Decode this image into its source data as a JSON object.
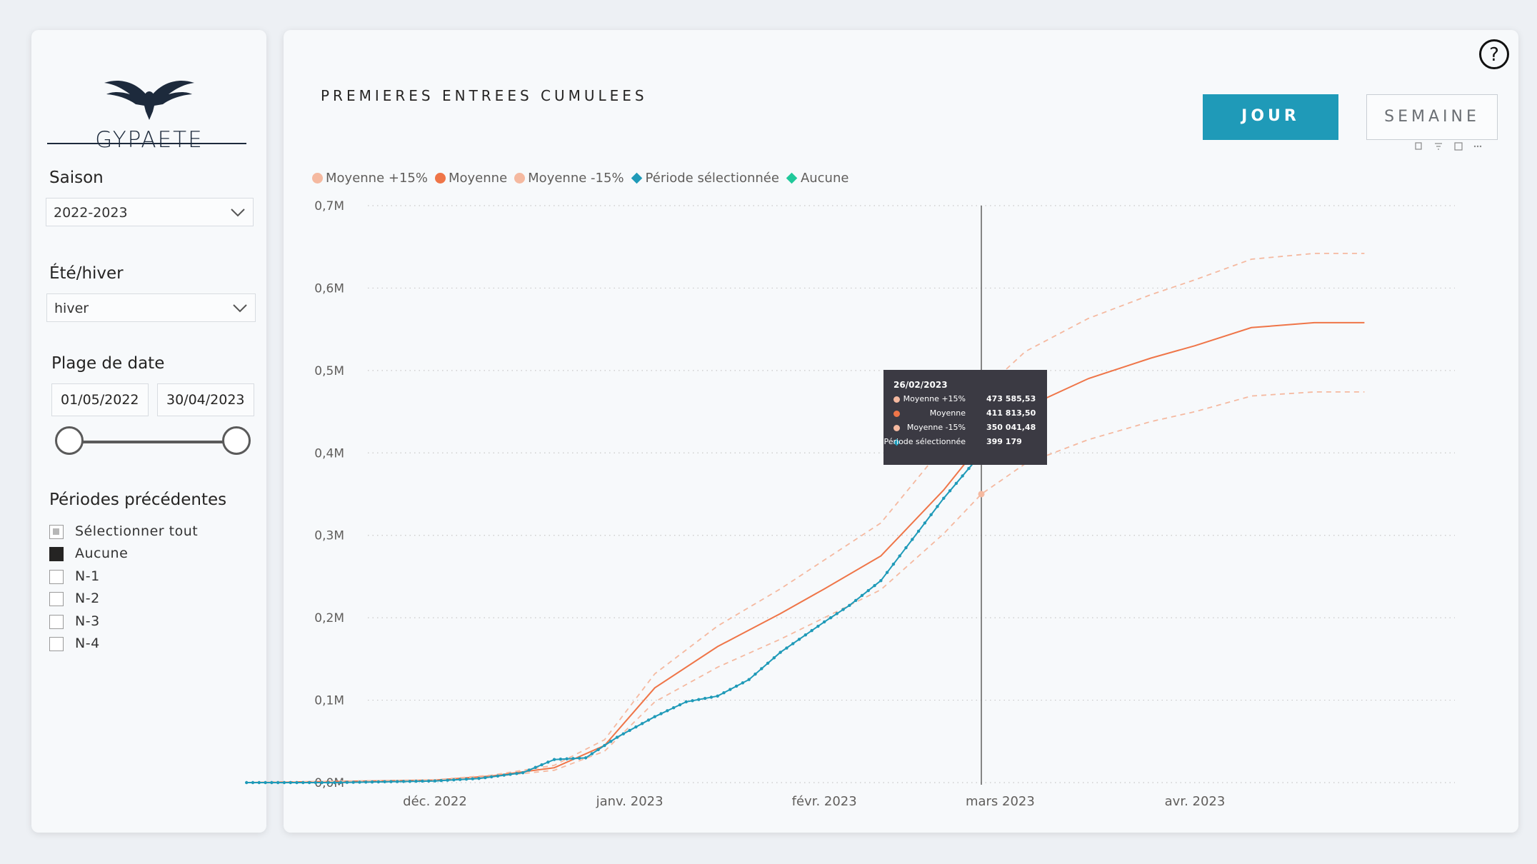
{
  "logo": {
    "text": "GYPAETE"
  },
  "slicers": {
    "saison": {
      "title": "Saison",
      "value": "2022-2023"
    },
    "ete_hiver": {
      "title": "Été/hiver",
      "value": "hiver"
    },
    "plage_date": {
      "title": "Plage de date",
      "start": "01/05/2022",
      "end": "30/04/2023"
    },
    "periodes": {
      "title": "Périodes précédentes",
      "items": [
        {
          "label": "Sélectionner tout",
          "state": "partial"
        },
        {
          "label": "Aucune",
          "state": "checked"
        },
        {
          "label": "N-1",
          "state": "unchecked"
        },
        {
          "label": "N-2",
          "state": "unchecked"
        },
        {
          "label": "N-3",
          "state": "unchecked"
        },
        {
          "label": "N-4",
          "state": "unchecked"
        }
      ]
    }
  },
  "main": {
    "title": "PREMIERES ENTREES CUMULEES",
    "buttons": {
      "jour": "JOUR",
      "semaine": "SEMAINE"
    },
    "help_icon": "question-circle-icon"
  },
  "colors": {
    "plus15": "#f5b9a0",
    "moyenne": "#ef7548",
    "minus15": "#f5b9a0",
    "periode": "#1f9ab8",
    "aucune": "#20c89a"
  },
  "chart_data": {
    "type": "line",
    "x_axis": {
      "ticks": [
        "déc. 2022",
        "janv. 2023",
        "févr. 2023",
        "mars 2023",
        "avr. 2023"
      ]
    },
    "y_axis": {
      "ticks": [
        "0,0M",
        "0,1M",
        "0,2M",
        "0,3M",
        "0,4M",
        "0,5M",
        "0,6M",
        "0,7M"
      ],
      "ylim": [
        0,
        700000
      ]
    },
    "grid": "horizontal-dotted",
    "legend_position": "top-left",
    "legend": [
      {
        "name": "Moyenne +15%",
        "marker": "circle",
        "color_key": "plus15"
      },
      {
        "name": "Moyenne",
        "marker": "circle",
        "color_key": "moyenne"
      },
      {
        "name": "Moyenne -15%",
        "marker": "circle",
        "color_key": "minus15"
      },
      {
        "name": "Période sélectionnée",
        "marker": "diamond",
        "color_key": "periode"
      },
      {
        "name": "Aucune",
        "marker": "diamond",
        "color_key": "aucune"
      }
    ],
    "series": [
      {
        "name": "Moyenne",
        "x": [
          "2022-11-01",
          "2022-12-01",
          "2022-12-10",
          "2022-12-20",
          "2022-12-28",
          "2023-01-05",
          "2023-01-15",
          "2023-01-25",
          "2023-02-01",
          "2023-02-10",
          "2023-02-20",
          "2023-02-26",
          "2023-03-05",
          "2023-03-15",
          "2023-03-25",
          "2023-04-01",
          "2023-04-10",
          "2023-04-20",
          "2023-04-28"
        ],
        "values": [
          0,
          3000,
          8000,
          18000,
          45000,
          115000,
          165000,
          205000,
          235000,
          275000,
          355000,
          411813.5,
          455000,
          490000,
          515000,
          530000,
          552000,
          558000,
          558000
        ]
      },
      {
        "name": "Moyenne +15%",
        "x": [
          "2022-11-01",
          "2022-12-01",
          "2022-12-10",
          "2022-12-20",
          "2022-12-28",
          "2023-01-05",
          "2023-01-15",
          "2023-01-25",
          "2023-02-01",
          "2023-02-10",
          "2023-02-20",
          "2023-02-26",
          "2023-03-05",
          "2023-03-15",
          "2023-03-25",
          "2023-04-01",
          "2023-04-10",
          "2023-04-20",
          "2023-04-28"
        ],
        "values": [
          0,
          3500,
          9000,
          21000,
          52000,
          132000,
          190000,
          235000,
          270000,
          315000,
          408000,
          473585.53,
          523000,
          563000,
          592000,
          610000,
          635000,
          642000,
          642000
        ]
      },
      {
        "name": "Moyenne -15%",
        "x": [
          "2022-11-01",
          "2022-12-01",
          "2022-12-10",
          "2022-12-20",
          "2022-12-28",
          "2023-01-05",
          "2023-01-15",
          "2023-01-25",
          "2023-02-01",
          "2023-02-10",
          "2023-02-20",
          "2023-02-26",
          "2023-03-05",
          "2023-03-15",
          "2023-03-25",
          "2023-04-01",
          "2023-04-10",
          "2023-04-20",
          "2023-04-28"
        ],
        "values": [
          0,
          2500,
          7000,
          15000,
          38000,
          98000,
          140000,
          174000,
          200000,
          234000,
          302000,
          350041.48,
          387000,
          416000,
          438000,
          450000,
          469000,
          474000,
          474000
        ]
      },
      {
        "name": "Période sélectionnée",
        "x": [
          "2022-11-01",
          "2022-11-15",
          "2022-12-01",
          "2022-12-08",
          "2022-12-15",
          "2022-12-20",
          "2022-12-25",
          "2022-12-30",
          "2023-01-05",
          "2023-01-10",
          "2023-01-15",
          "2023-01-20",
          "2023-01-25",
          "2023-02-01",
          "2023-02-05",
          "2023-02-10",
          "2023-02-15",
          "2023-02-20",
          "2023-02-26"
        ],
        "values": [
          0,
          0,
          2000,
          5000,
          12000,
          28000,
          30000,
          55000,
          80000,
          98000,
          105000,
          125000,
          158000,
          195000,
          215000,
          245000,
          295000,
          345000,
          399179
        ]
      }
    ],
    "tooltip": {
      "date": "26/02/2023",
      "rows": [
        {
          "label": "Moyenne +15%",
          "value": "473 585,53",
          "color_key": "plus15",
          "marker": "circle"
        },
        {
          "label": "Moyenne",
          "value": "411 813,50",
          "color_key": "moyenne",
          "marker": "circle"
        },
        {
          "label": "Moyenne -15%",
          "value": "350 041,48",
          "color_key": "minus15",
          "marker": "circle"
        },
        {
          "label": "Période sélectionnée",
          "value": "399 179",
          "color_key": "periode",
          "marker": "diamond"
        }
      ]
    }
  }
}
